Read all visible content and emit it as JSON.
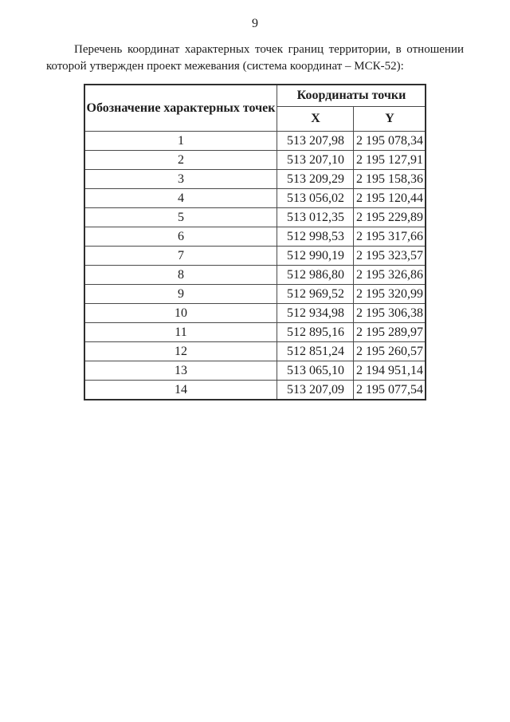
{
  "page": {
    "number": "9",
    "intro_paragraph": "Перечень координат характерных точек границ территории, в отношении которой утвержден проект межевания (система координат – МСК-52):"
  },
  "table": {
    "headers": {
      "designation": "Обозначение характерных точек",
      "coordinates": "Координаты точки",
      "x": "X",
      "y": "Y"
    },
    "rows": [
      {
        "point": "1",
        "x": "513 207,98",
        "y": "2 195 078,34"
      },
      {
        "point": "2",
        "x": "513 207,10",
        "y": "2 195 127,91"
      },
      {
        "point": "3",
        "x": "513 209,29",
        "y": "2 195 158,36"
      },
      {
        "point": "4",
        "x": "513 056,02",
        "y": "2 195 120,44"
      },
      {
        "point": "5",
        "x": "513 012,35",
        "y": "2 195 229,89"
      },
      {
        "point": "6",
        "x": "512 998,53",
        "y": "2 195 317,66"
      },
      {
        "point": "7",
        "x": "512 990,19",
        "y": "2 195 323,57"
      },
      {
        "point": "8",
        "x": "512 986,80",
        "y": "2 195 326,86"
      },
      {
        "point": "9",
        "x": "512 969,52",
        "y": "2 195 320,99"
      },
      {
        "point": "10",
        "x": "512 934,98",
        "y": "2 195 306,38"
      },
      {
        "point": "11",
        "x": "512 895,16",
        "y": "2 195 289,97"
      },
      {
        "point": "12",
        "x": "512 851,24",
        "y": "2 195 260,57"
      },
      {
        "point": "13",
        "x": "513 065,10",
        "y": "2 194 951,14"
      },
      {
        "point": "14",
        "x": "513 207,09",
        "y": "2 195 077,54"
      }
    ]
  }
}
